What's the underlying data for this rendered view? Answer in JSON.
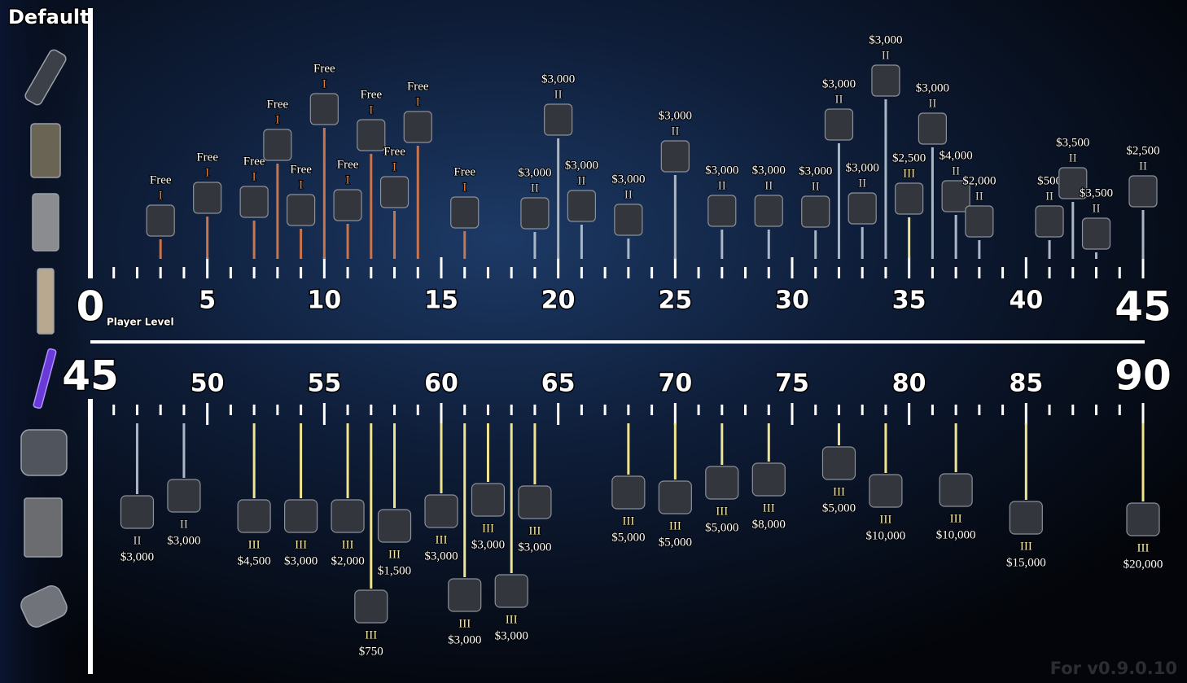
{
  "header": {
    "title": "Default"
  },
  "axis": {
    "label": "Player Level",
    "top_ticks": [
      0,
      5,
      10,
      15,
      20,
      25,
      30,
      35,
      40,
      45
    ],
    "bottom_ticks": [
      45,
      50,
      55,
      60,
      65,
      70,
      75,
      80,
      85,
      90
    ]
  },
  "top_items": [
    {
      "level": 3,
      "price": "Free",
      "tier": "I"
    },
    {
      "level": 5,
      "price": "Free",
      "tier": "I"
    },
    {
      "level": 7,
      "price": "Free",
      "tier": "I"
    },
    {
      "level": 8,
      "price": "Free",
      "tier": "I"
    },
    {
      "level": 9,
      "price": "Free",
      "tier": "I"
    },
    {
      "level": 10,
      "price": "Free",
      "tier": "I"
    },
    {
      "level": 11,
      "price": "Free",
      "tier": "I"
    },
    {
      "level": 12,
      "price": "Free",
      "tier": "I"
    },
    {
      "level": 13,
      "price": "Free",
      "tier": "I"
    },
    {
      "level": 14,
      "price": "Free",
      "tier": "I"
    },
    {
      "level": 16,
      "price": "Free",
      "tier": "I"
    },
    {
      "level": 19,
      "price": "$3,000",
      "tier": "II"
    },
    {
      "level": 20,
      "price": "$3,000",
      "tier": "II"
    },
    {
      "level": 21,
      "price": "$3,000",
      "tier": "II"
    },
    {
      "level": 23,
      "price": "$3,000",
      "tier": "II"
    },
    {
      "level": 25,
      "price": "$3,000",
      "tier": "II"
    },
    {
      "level": 27,
      "price": "$3,000",
      "tier": "II"
    },
    {
      "level": 29,
      "price": "$3,000",
      "tier": "II"
    },
    {
      "level": 31,
      "price": "$3,000",
      "tier": "II"
    },
    {
      "level": 32,
      "price": "$3,000",
      "tier": "II"
    },
    {
      "level": 33,
      "price": "$3,000",
      "tier": "II"
    },
    {
      "level": 34,
      "price": "$3,000",
      "tier": "II"
    },
    {
      "level": 35,
      "price": "$2,500",
      "tier": "III"
    },
    {
      "level": 36,
      "price": "$3,000",
      "tier": "II"
    },
    {
      "level": 37,
      "price": "$4,000",
      "tier": "II"
    },
    {
      "level": 38,
      "price": "$2,000",
      "tier": "II"
    },
    {
      "level": 41,
      "price": "$500",
      "tier": "II"
    },
    {
      "level": 42,
      "price": "$3,500",
      "tier": "II"
    },
    {
      "level": 43,
      "price": "$3,500",
      "tier": "II"
    },
    {
      "level": 45,
      "price": "$2,500",
      "tier": "II"
    }
  ],
  "bottom_items": [
    {
      "level": 47,
      "tier": "II",
      "price": "$3,000"
    },
    {
      "level": 49,
      "tier": "II",
      "price": "$3,000"
    },
    {
      "level": 52,
      "tier": "III",
      "price": "$4,500"
    },
    {
      "level": 54,
      "tier": "III",
      "price": "$3,000"
    },
    {
      "level": 56,
      "tier": "III",
      "price": "$2,000"
    },
    {
      "level": 57,
      "tier": "III",
      "price": "$750"
    },
    {
      "level": 58,
      "tier": "III",
      "price": "$1,500"
    },
    {
      "level": 60,
      "tier": "III",
      "price": "$3,000"
    },
    {
      "level": 61,
      "tier": "III",
      "price": "$3,000"
    },
    {
      "level": 62,
      "tier": "III",
      "price": "$3,000"
    },
    {
      "level": 63,
      "tier": "III",
      "price": "$3,000"
    },
    {
      "level": 64,
      "tier": "III",
      "price": "$3,000"
    },
    {
      "level": 68,
      "tier": "III",
      "price": "$5,000"
    },
    {
      "level": 70,
      "tier": "III",
      "price": "$5,000"
    },
    {
      "level": 72,
      "tier": "III",
      "price": "$5,000"
    },
    {
      "level": 74,
      "tier": "III",
      "price": "$8,000"
    },
    {
      "level": 77,
      "tier": "III",
      "price": "$5,000"
    },
    {
      "level": 79,
      "tier": "III",
      "price": "$10,000"
    },
    {
      "level": 82,
      "tier": "III",
      "price": "$10,000"
    },
    {
      "level": 85,
      "tier": "III",
      "price": "$15,000"
    },
    {
      "level": 90,
      "tier": "III",
      "price": "$20,000"
    }
  ],
  "footer": {
    "version": "For v0.9.0.10"
  }
}
